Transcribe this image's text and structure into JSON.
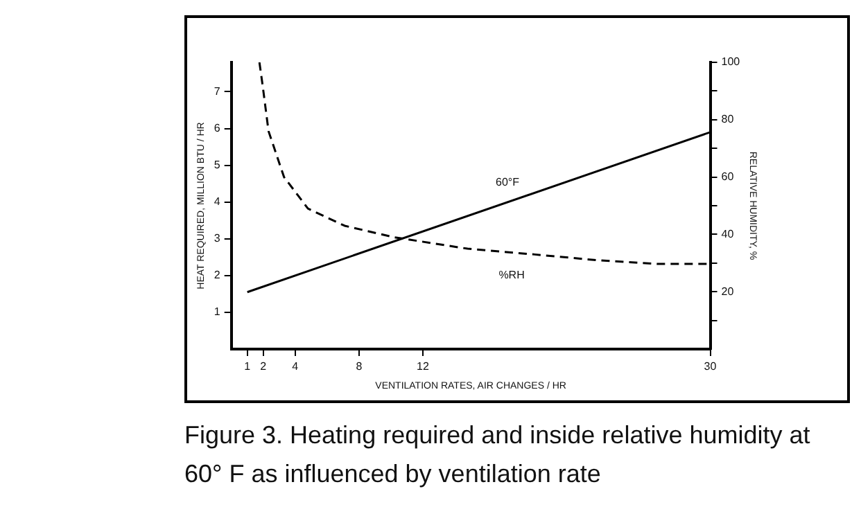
{
  "chart_data": {
    "type": "line",
    "xlabel": "VENTILATION RATES, AIR CHANGES / HR",
    "ylabel": "HEAT REQUIRED, MILLION BTU / HR",
    "y2label": "RELATIVE HUMIDITY, %",
    "xlim": [
      0,
      30
    ],
    "xticks": [
      1,
      2,
      4,
      8,
      12,
      30
    ],
    "ylim": [
      0,
      7.8
    ],
    "yticks": [
      1,
      2,
      3,
      4,
      5,
      6,
      7
    ],
    "y2lim": [
      0,
      100
    ],
    "y2ticks": [
      {
        "value": 10,
        "label": null
      },
      20,
      {
        "value": 30,
        "label": null
      },
      40,
      {
        "value": 50,
        "label": null
      },
      60,
      {
        "value": 70,
        "label": null
      },
      80,
      {
        "value": 90,
        "label": null
      },
      100
    ],
    "grid": false,
    "legend": false,
    "marker": "none",
    "series": [
      {
        "name": "60°F",
        "color": "#000000",
        "line_style": "solid",
        "x": [
          1,
          30
        ],
        "values": [
          1.55,
          5.9
        ]
      },
      {
        "name": "%RH",
        "color": "#000000",
        "line_style": "dashed",
        "axis": "y2",
        "x": [
          1.76,
          1.96,
          2.33,
          3.3,
          4.8,
          7.1,
          10.2,
          14.8,
          19,
          22.9,
          26.7,
          29.9
        ],
        "values": [
          100,
          92,
          76,
          60,
          49,
          43,
          39,
          35,
          33,
          31,
          29.7,
          29.7
        ]
      }
    ],
    "annotations": [
      "Figure 3. Heating required and inside relative humidity at 60° F as influenced by ventilation rate"
    ]
  }
}
